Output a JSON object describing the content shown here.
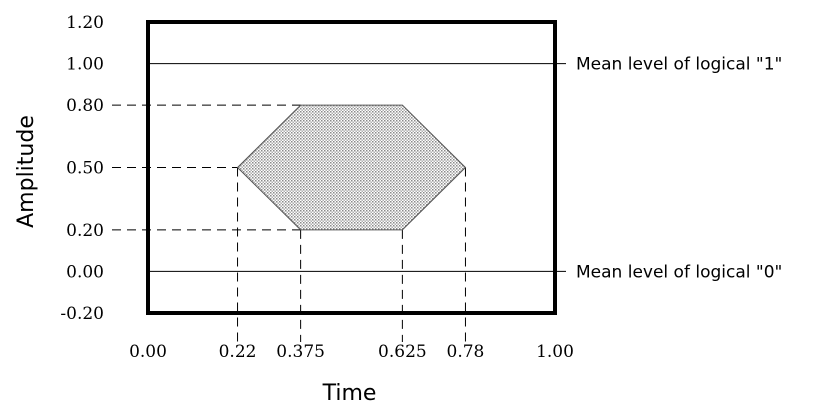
{
  "chart_data": {
    "type": "eye-mask-diagram",
    "xlabel": "Time",
    "ylabel": "Amplitude",
    "xlim": [
      0.0,
      1.0
    ],
    "ylim": [
      -0.2,
      1.2
    ],
    "x_ticks": [
      {
        "value": 0.0,
        "label": "0.00"
      },
      {
        "value": 0.22,
        "label": "0.22"
      },
      {
        "value": 0.375,
        "label": "0.375"
      },
      {
        "value": 0.625,
        "label": "0.625"
      },
      {
        "value": 0.78,
        "label": "0.78"
      },
      {
        "value": 1.0,
        "label": "1.00"
      }
    ],
    "y_ticks": [
      {
        "value": 1.2,
        "label": "1.20"
      },
      {
        "value": 1.0,
        "label": "1.00"
      },
      {
        "value": 0.8,
        "label": "0.80"
      },
      {
        "value": 0.5,
        "label": "0.50"
      },
      {
        "value": 0.2,
        "label": "0.20"
      },
      {
        "value": 0.0,
        "label": "0.00"
      },
      {
        "value": -0.2,
        "label": "-0.20"
      }
    ],
    "reference_lines": [
      {
        "y": 1.0,
        "label": "Mean level of logical \"1\""
      },
      {
        "y": 0.0,
        "label": "Mean level of logical \"0\""
      }
    ],
    "mask_polygon": [
      {
        "x": 0.22,
        "y": 0.5
      },
      {
        "x": 0.375,
        "y": 0.8
      },
      {
        "x": 0.625,
        "y": 0.8
      },
      {
        "x": 0.78,
        "y": 0.5
      },
      {
        "x": 0.625,
        "y": 0.2
      },
      {
        "x": 0.375,
        "y": 0.2
      }
    ],
    "guide_lines": [
      {
        "orientation": "h",
        "y": 0.8,
        "x_to": 0.375
      },
      {
        "orientation": "h",
        "y": 0.5,
        "x_to": 0.22
      },
      {
        "orientation": "h",
        "y": 0.2,
        "x_to": 0.375
      },
      {
        "orientation": "v",
        "x": 0.22,
        "y_from": 0.5
      },
      {
        "orientation": "v",
        "x": 0.375,
        "y_from": 0.2
      },
      {
        "orientation": "v",
        "x": 0.625,
        "y_from": 0.2
      },
      {
        "orientation": "v",
        "x": 0.78,
        "y_from": 0.5
      }
    ],
    "mask_fill_color": "#c8c8c8",
    "line_color": "#000000"
  }
}
